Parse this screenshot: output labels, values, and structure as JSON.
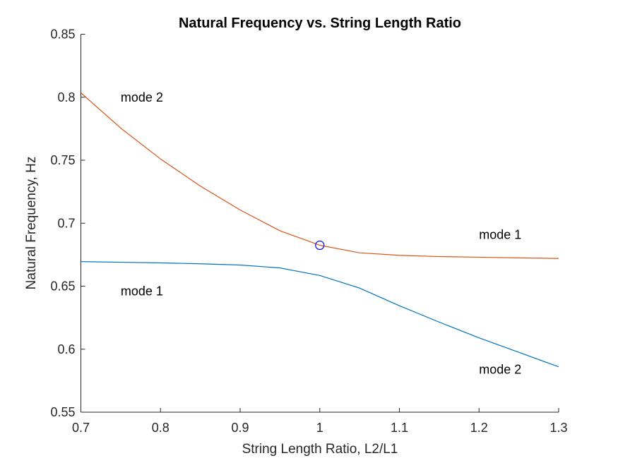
{
  "chart_data": {
    "type": "line",
    "title": "Natural Frequency vs. String Length Ratio",
    "xlabel": "String Length Ratio,  L2/L1",
    "ylabel": "Natural Frequency, Hz",
    "xlim": [
      0.7,
      1.3
    ],
    "ylim": [
      0.55,
      0.85
    ],
    "xticks": [
      0.7,
      0.8,
      0.9,
      1.0,
      1.1,
      1.2,
      1.3
    ],
    "xtick_labels": [
      "0.7",
      "0.8",
      "0.9",
      "1",
      "1.1",
      "1.2",
      "1.3"
    ],
    "yticks": [
      0.55,
      0.6,
      0.65,
      0.7,
      0.75,
      0.8,
      0.85
    ],
    "ytick_labels": [
      "0.55",
      "0.6",
      "0.65",
      "0.7",
      "0.75",
      "0.8",
      "0.85"
    ],
    "grid": false,
    "series": [
      {
        "color": "#0072BD",
        "x": [
          0.7,
          0.75,
          0.8,
          0.85,
          0.9,
          0.95,
          1.0,
          1.05,
          1.1,
          1.15,
          1.2,
          1.25,
          1.3
        ],
        "y": [
          0.6695,
          0.669,
          0.6685,
          0.6678,
          0.6668,
          0.6645,
          0.6585,
          0.6485,
          0.6345,
          0.6215,
          0.609,
          0.5975,
          0.586
        ]
      },
      {
        "color": "#D95319",
        "x": [
          0.7,
          0.75,
          0.8,
          0.85,
          0.9,
          0.95,
          1.0,
          1.05,
          1.1,
          1.15,
          1.2,
          1.25,
          1.3
        ],
        "y": [
          0.8035,
          0.7755,
          0.751,
          0.7295,
          0.7105,
          0.694,
          0.6825,
          0.6765,
          0.6745,
          0.6735,
          0.673,
          0.6725,
          0.672
        ]
      }
    ],
    "markers": [
      {
        "x": 1.0,
        "y": 0.6825,
        "shape": "circle",
        "color": "#0000FF"
      }
    ],
    "annotations": [
      {
        "text": "mode 2",
        "x": 0.75,
        "y": 0.8
      },
      {
        "text": "mode 1",
        "x": 0.75,
        "y": 0.646
      },
      {
        "text": "mode 1",
        "x": 1.2,
        "y": 0.691
      },
      {
        "text": "mode 2",
        "x": 1.2,
        "y": 0.584
      }
    ]
  }
}
